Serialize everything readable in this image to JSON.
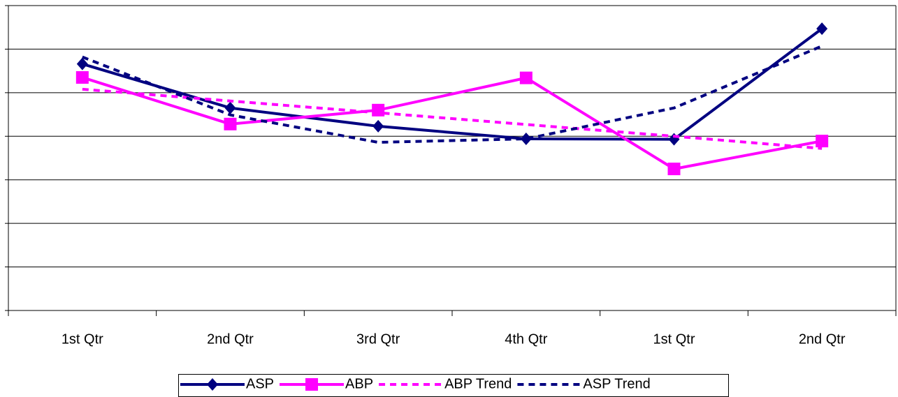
{
  "chart_data": {
    "type": "line",
    "categories": [
      "1st Qtr",
      "2nd Qtr",
      "3rd Qtr",
      "4th Qtr",
      "1st Qtr",
      "2nd Qtr"
    ],
    "series": [
      {
        "name": "ASP",
        "color": "#000080",
        "marker": "diamond",
        "dashed": false,
        "values": [
          5.66,
          4.65,
          4.23,
          3.94,
          3.93,
          6.47
        ]
      },
      {
        "name": "ABP",
        "color": "#ff00ff",
        "marker": "square",
        "dashed": false,
        "values": [
          5.35,
          4.28,
          4.6,
          5.34,
          3.25,
          3.89
        ]
      },
      {
        "name": "ABP Trend",
        "color": "#ff00ff",
        "marker": null,
        "dashed": true,
        "values": [
          5.08,
          4.81,
          4.54,
          4.27,
          4.0,
          3.72
        ]
      },
      {
        "name": "ASP Trend",
        "color": "#000080",
        "marker": null,
        "dashed": true,
        "values": [
          5.82,
          4.49,
          3.86,
          3.94,
          4.65,
          6.07
        ]
      }
    ],
    "ylim": [
      0,
      7
    ],
    "yticks": [
      0,
      1,
      2,
      3,
      4,
      5,
      6,
      7
    ],
    "grid": true,
    "legend": "bottom"
  }
}
